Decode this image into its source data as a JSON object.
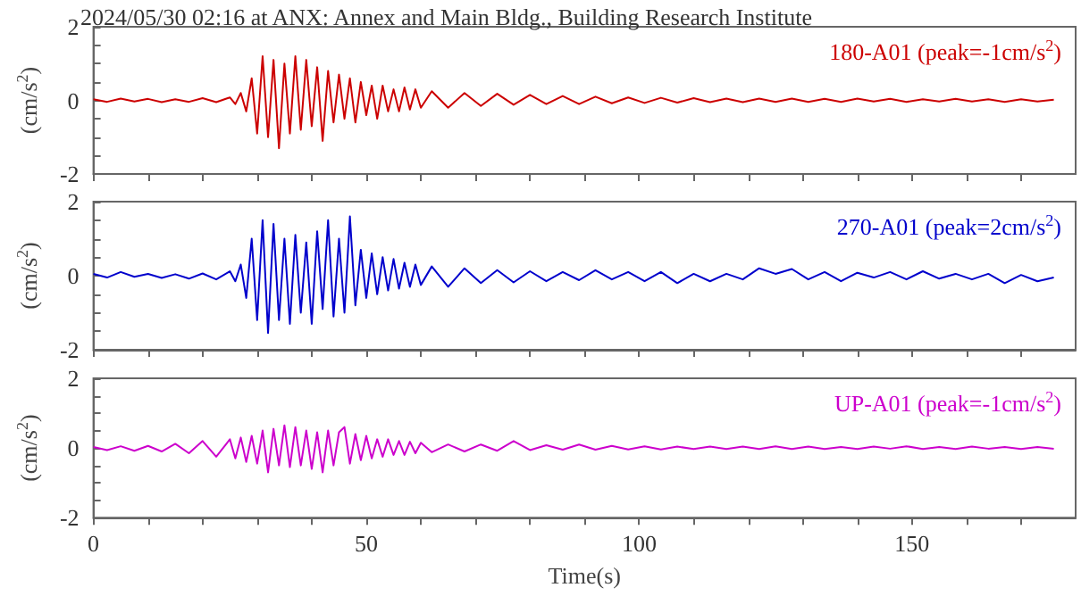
{
  "chart_data": [
    {
      "type": "line",
      "title": "2024/05/30 02:16 at ANX: Annex and Main Bldg., Building Research Institute",
      "ylabel": "(cm/s$^{2}$)",
      "annotations": [
        "180-A01 (peak=-1cm/s$^{2}$)"
      ],
      "xlim": [
        0,
        180
      ],
      "ylim": [
        -2,
        2
      ],
      "xticks": [
        0,
        {
          "value": 10,
          "label": null
        },
        {
          "value": 20,
          "label": null
        },
        {
          "value": 30,
          "label": null
        },
        {
          "value": 40,
          "label": null
        },
        50,
        {
          "value": 60,
          "label": null
        },
        {
          "value": 70,
          "label": null
        },
        {
          "value": 80,
          "label": null
        },
        {
          "value": 90,
          "label": null
        },
        100,
        {
          "value": 110,
          "label": null
        },
        {
          "value": 120,
          "label": null
        },
        {
          "value": 130,
          "label": null
        },
        {
          "value": 140,
          "label": null
        },
        150,
        {
          "value": 160,
          "label": null
        },
        {
          "value": 170,
          "label": null
        }
      ],
      "yticks": [
        -2,
        {
          "value": -1.5,
          "label": null
        },
        {
          "value": -1,
          "label": null
        },
        {
          "value": -0.5,
          "label": null
        },
        0,
        {
          "value": 0.5,
          "label": null
        },
        {
          "value": 1,
          "label": null
        },
        {
          "value": 1.5,
          "label": null
        },
        2
      ],
      "tick_labels": "y",
      "grid": false,
      "marker": "none",
      "line_style": "solid",
      "x": [
        0,
        2.5,
        5,
        7.5,
        10,
        12.5,
        15,
        17.5,
        20,
        22.5,
        25,
        26,
        27,
        28,
        29,
        30,
        31,
        32,
        33,
        34,
        35,
        36,
        37,
        38,
        39,
        40,
        41,
        42,
        43,
        44,
        45,
        46,
        47,
        48,
        49,
        50,
        51,
        52,
        53,
        54,
        55,
        56,
        57,
        58,
        59,
        60,
        62,
        65,
        68,
        71,
        74,
        77,
        80,
        83,
        86,
        89,
        92,
        95,
        98,
        101,
        104,
        107,
        110,
        113,
        116,
        119,
        122,
        125,
        128,
        131,
        134,
        137,
        140,
        143,
        146,
        149,
        152,
        155,
        158,
        161,
        164,
        167,
        170,
        173,
        176
      ],
      "series": [
        {
          "color": "#cc0000",
          "values": [
            0.03,
            -0.04,
            0.05,
            -0.03,
            0.04,
            -0.05,
            0.03,
            -0.04,
            0.06,
            -0.05,
            0.08,
            -0.1,
            0.2,
            -0.3,
            0.6,
            -0.9,
            1.2,
            -1.0,
            1.1,
            -1.3,
            1.0,
            -0.9,
            1.2,
            -0.8,
            1.1,
            -0.7,
            0.9,
            -1.1,
            0.8,
            -0.6,
            0.7,
            -0.5,
            0.6,
            -0.6,
            0.5,
            -0.4,
            0.4,
            -0.5,
            0.4,
            -0.3,
            0.3,
            -0.3,
            0.35,
            -0.25,
            0.3,
            -0.2,
            0.25,
            -0.2,
            0.2,
            -0.15,
            0.18,
            -0.12,
            0.15,
            -0.1,
            0.12,
            -0.1,
            0.1,
            -0.08,
            0.08,
            -0.07,
            0.07,
            -0.06,
            0.06,
            -0.05,
            0.05,
            -0.05,
            0.05,
            -0.04,
            0.05,
            -0.04,
            0.04,
            -0.04,
            0.05,
            -0.03,
            0.04,
            -0.04,
            0.03,
            -0.03,
            0.04,
            -0.03,
            0.03,
            -0.04,
            0.03,
            -0.03,
            0.02
          ]
        }
      ]
    },
    {
      "type": "line",
      "ylabel": "(cm/s$^{2}$)",
      "annotations": [
        "270-A01 (peak=2cm/s$^{2}$)"
      ],
      "xlim": [
        0,
        180
      ],
      "ylim": [
        -2,
        2
      ],
      "xticks": [
        0,
        {
          "value": 10,
          "label": null
        },
        {
          "value": 20,
          "label": null
        },
        {
          "value": 30,
          "label": null
        },
        {
          "value": 40,
          "label": null
        },
        50,
        {
          "value": 60,
          "label": null
        },
        {
          "value": 70,
          "label": null
        },
        {
          "value": 80,
          "label": null
        },
        {
          "value": 90,
          "label": null
        },
        100,
        {
          "value": 110,
          "label": null
        },
        {
          "value": 120,
          "label": null
        },
        {
          "value": 130,
          "label": null
        },
        {
          "value": 140,
          "label": null
        },
        150,
        {
          "value": 160,
          "label": null
        },
        {
          "value": 170,
          "label": null
        }
      ],
      "yticks": [
        -2,
        {
          "value": -1.5,
          "label": null
        },
        {
          "value": -1,
          "label": null
        },
        {
          "value": -0.5,
          "label": null
        },
        0,
        {
          "value": 0.5,
          "label": null
        },
        {
          "value": 1,
          "label": null
        },
        {
          "value": 1.5,
          "label": null
        },
        2
      ],
      "tick_labels": "y",
      "grid": false,
      "marker": "none",
      "line_style": "solid",
      "x": [
        0,
        2.5,
        5,
        7.5,
        10,
        12.5,
        15,
        17.5,
        20,
        22.5,
        25,
        26,
        27,
        28,
        29,
        30,
        31,
        32,
        33,
        34,
        35,
        36,
        37,
        38,
        39,
        40,
        41,
        42,
        43,
        44,
        45,
        46,
        47,
        48,
        49,
        50,
        51,
        52,
        53,
        54,
        55,
        56,
        57,
        58,
        59,
        60,
        62,
        65,
        68,
        71,
        74,
        77,
        80,
        83,
        86,
        89,
        92,
        95,
        98,
        101,
        104,
        107,
        110,
        113,
        116,
        119,
        122,
        125,
        128,
        131,
        134,
        137,
        140,
        143,
        146,
        149,
        152,
        155,
        158,
        161,
        164,
        167,
        170,
        173,
        176
      ],
      "series": [
        {
          "color": "#0000cc",
          "values": [
            0.05,
            -0.05,
            0.1,
            -0.03,
            0.05,
            -0.06,
            0.04,
            -0.08,
            0.06,
            -0.1,
            0.12,
            -0.15,
            0.3,
            -0.6,
            1.0,
            -1.2,
            1.5,
            -1.55,
            1.4,
            -1.2,
            1.0,
            -1.3,
            1.1,
            -1.0,
            0.9,
            -1.3,
            1.2,
            -0.9,
            1.5,
            -1.1,
            1.0,
            -1.0,
            1.6,
            -0.8,
            0.7,
            -0.6,
            0.6,
            -0.5,
            0.5,
            -0.4,
            0.45,
            -0.35,
            0.35,
            -0.3,
            0.3,
            -0.25,
            0.25,
            -0.3,
            0.2,
            -0.2,
            0.15,
            -0.18,
            0.12,
            -0.15,
            0.1,
            -0.12,
            0.15,
            -0.1,
            0.1,
            -0.15,
            0.1,
            -0.2,
            0.05,
            -0.15,
            0.05,
            -0.1,
            0.2,
            0.05,
            0.18,
            -0.1,
            0.1,
            -0.15,
            0.08,
            -0.05,
            0.1,
            -0.1,
            0.12,
            -0.08,
            0.05,
            -0.1,
            0.05,
            -0.2,
            0.02,
            -0.15,
            -0.05
          ]
        }
      ]
    },
    {
      "type": "line",
      "xlabel": "Time(s)",
      "ylabel": "(cm/s$^{2}$)",
      "annotations": [
        "UP-A01 (peak=-1cm/s$^{2}$)"
      ],
      "xlim": [
        0,
        180
      ],
      "ylim": [
        -2,
        2
      ],
      "xticks": [
        0,
        {
          "value": 10,
          "label": null
        },
        {
          "value": 20,
          "label": null
        },
        {
          "value": 30,
          "label": null
        },
        {
          "value": 40,
          "label": null
        },
        50,
        {
          "value": 60,
          "label": null
        },
        {
          "value": 70,
          "label": null
        },
        {
          "value": 80,
          "label": null
        },
        {
          "value": 90,
          "label": null
        },
        100,
        {
          "value": 110,
          "label": null
        },
        {
          "value": 120,
          "label": null
        },
        {
          "value": 130,
          "label": null
        },
        {
          "value": 140,
          "label": null
        },
        150,
        {
          "value": 160,
          "label": null
        },
        {
          "value": 170,
          "label": null
        }
      ],
      "yticks": [
        -2,
        {
          "value": -1.5,
          "label": null
        },
        {
          "value": -1,
          "label": null
        },
        {
          "value": -0.5,
          "label": null
        },
        0,
        {
          "value": 0.5,
          "label": null
        },
        {
          "value": 1,
          "label": null
        },
        {
          "value": 1.5,
          "label": null
        },
        2
      ],
      "grid": false,
      "marker": "none",
      "line_style": "solid",
      "x": [
        0,
        2.5,
        5,
        7.5,
        10,
        12.5,
        15,
        17.5,
        20,
        22.5,
        25,
        26,
        27,
        28,
        29,
        30,
        31,
        32,
        33,
        34,
        35,
        36,
        37,
        38,
        39,
        40,
        41,
        42,
        43,
        44,
        45,
        46,
        47,
        48,
        49,
        50,
        51,
        52,
        53,
        54,
        55,
        56,
        57,
        58,
        59,
        60,
        62,
        65,
        68,
        71,
        74,
        77,
        80,
        83,
        86,
        89,
        92,
        95,
        98,
        101,
        104,
        107,
        110,
        113,
        116,
        119,
        122,
        125,
        128,
        131,
        134,
        137,
        140,
        143,
        146,
        149,
        152,
        155,
        158,
        161,
        164,
        167,
        170,
        173,
        176
      ],
      "series": [
        {
          "color": "#cc00cc",
          "values": [
            0.03,
            -0.06,
            0.05,
            -0.08,
            0.06,
            -0.1,
            0.12,
            -0.15,
            0.2,
            -0.25,
            0.25,
            -0.3,
            0.3,
            -0.4,
            0.35,
            -0.45,
            0.5,
            -0.7,
            0.55,
            -0.5,
            0.65,
            -0.55,
            0.6,
            -0.5,
            0.5,
            -0.6,
            0.45,
            -0.7,
            0.5,
            -0.5,
            0.45,
            0.6,
            -0.45,
            0.4,
            -0.35,
            0.35,
            -0.3,
            0.25,
            -0.25,
            0.25,
            -0.2,
            0.2,
            -0.2,
            0.18,
            -0.15,
            0.15,
            -0.12,
            0.1,
            -0.1,
            0.1,
            -0.08,
            0.2,
            -0.06,
            0.08,
            -0.05,
            0.1,
            -0.05,
            0.06,
            -0.04,
            0.05,
            -0.04,
            0.04,
            -0.03,
            0.04,
            -0.03,
            0.04,
            -0.03,
            0.05,
            -0.03,
            0.04,
            -0.03,
            0.03,
            -0.03,
            0.04,
            -0.02,
            0.05,
            -0.03,
            0.03,
            -0.03,
            0.04,
            -0.02,
            0.03,
            -0.03,
            0.03,
            -0.02
          ]
        }
      ]
    }
  ]
}
